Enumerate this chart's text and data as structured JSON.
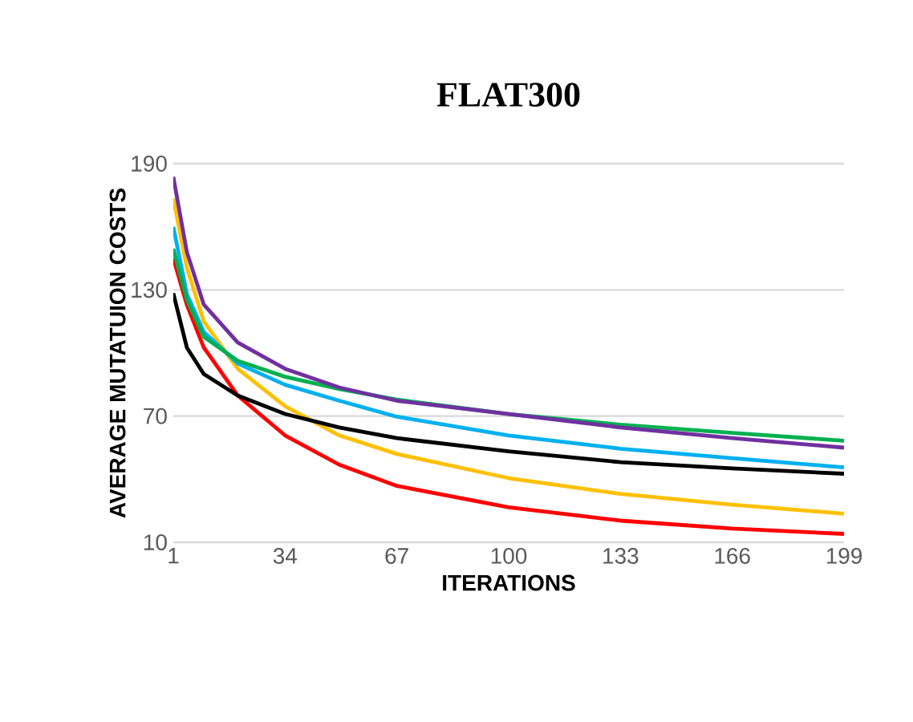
{
  "chart_data": {
    "type": "line",
    "title": "FLAT300",
    "xlabel": "ITERATIONS",
    "ylabel": "AVERAGE MUTATUION COSTS",
    "x": [
      1,
      5,
      10,
      20,
      34,
      50,
      67,
      100,
      133,
      166,
      199
    ],
    "xlim": [
      1,
      199
    ],
    "xticks": [
      1,
      34,
      67,
      100,
      133,
      166,
      199
    ],
    "ylim": [
      10,
      190
    ],
    "yticks": [
      10,
      70,
      130,
      190
    ],
    "grid": "y",
    "marker": "none",
    "line_style": "solid",
    "series": [
      {
        "color": "#ff0000",
        "values": [
          145,
          122.9,
          102.6,
          79.8,
          60.8,
          46.9,
          36.8,
          26.6,
          20.3,
          16.5,
          14
        ]
      },
      {
        "color": "#ffc000",
        "values": [
          173.5,
          140.6,
          115,
          92.5,
          74.7,
          60.8,
          52,
          40.5,
          33,
          27.9,
          23.6
        ]
      },
      {
        "color": "#00b0f0",
        "values": [
          160,
          128,
          110,
          95,
          84.9,
          77.3,
          69.7,
          60.8,
          54.5,
          50,
          45.6
        ]
      },
      {
        "color": "#000000",
        "values": [
          128.4,
          102.6,
          90,
          79.8,
          71,
          64.6,
          59.5,
          53.2,
          48.1,
          45.1,
          42.6
        ]
      },
      {
        "color": "#00b050",
        "values": [
          149.5,
          125.4,
          107.7,
          96.3,
          88.7,
          82.9,
          77.8,
          71,
          65.9,
          62,
          58.3
        ]
      },
      {
        "color": "#7030a0",
        "values": [
          183.7,
          148,
          123,
          105,
          92.5,
          83.6,
          77.3,
          71,
          64.6,
          59.5,
          55
        ]
      }
    ]
  }
}
